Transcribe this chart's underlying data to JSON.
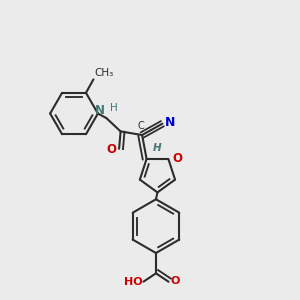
{
  "background_color": "#ebebeb",
  "bond_color": "#2c2c2c",
  "lw": 1.5,
  "dbo": 0.013,
  "figsize": [
    3.0,
    3.0
  ],
  "dpi": 100,
  "xlim": [
    0,
    1
  ],
  "ylim": [
    0,
    1
  ]
}
